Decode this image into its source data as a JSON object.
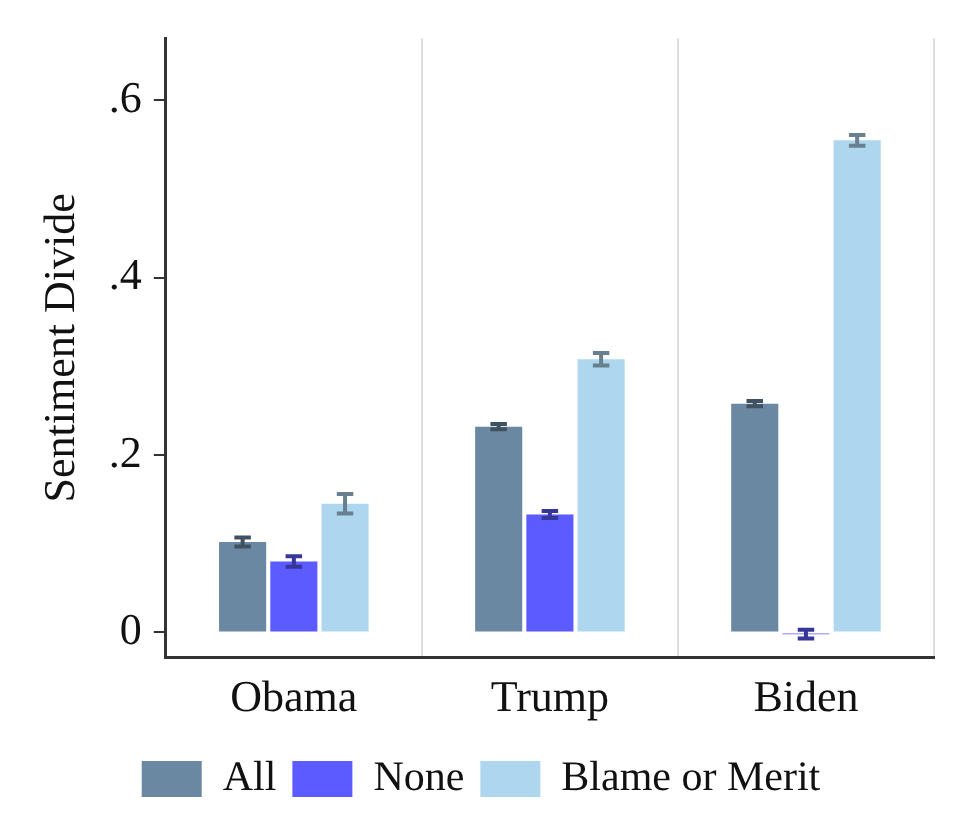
{
  "chart_data": {
    "type": "bar",
    "ylabel": "Sentiment Divide",
    "categories": [
      "Obama",
      "Trump",
      "Biden"
    ],
    "series": [
      {
        "name": "All",
        "color": "#6a88a2",
        "values": [
          0.102,
          0.232,
          0.258
        ],
        "errors": [
          0.005,
          0.003,
          0.003
        ]
      },
      {
        "name": "None",
        "color": "#5b5bff",
        "values": [
          0.08,
          0.133,
          -0.002
        ],
        "errors": [
          0.006,
          0.004,
          0.005
        ]
      },
      {
        "name": "Blame or Merit",
        "color": "#aed6ef",
        "values": [
          0.145,
          0.308,
          0.555
        ],
        "errors": [
          0.011,
          0.007,
          0.006
        ]
      }
    ],
    "ylim": [
      -0.028,
      0.67
    ],
    "yticks": [
      {
        "value": 0,
        "label": "0"
      },
      {
        "value": 0.2,
        "label": ".2"
      },
      {
        "value": 0.4,
        "label": ".4"
      },
      {
        "value": 0.6,
        "label": ".6"
      }
    ],
    "grid": "x",
    "legend": "bottom"
  }
}
